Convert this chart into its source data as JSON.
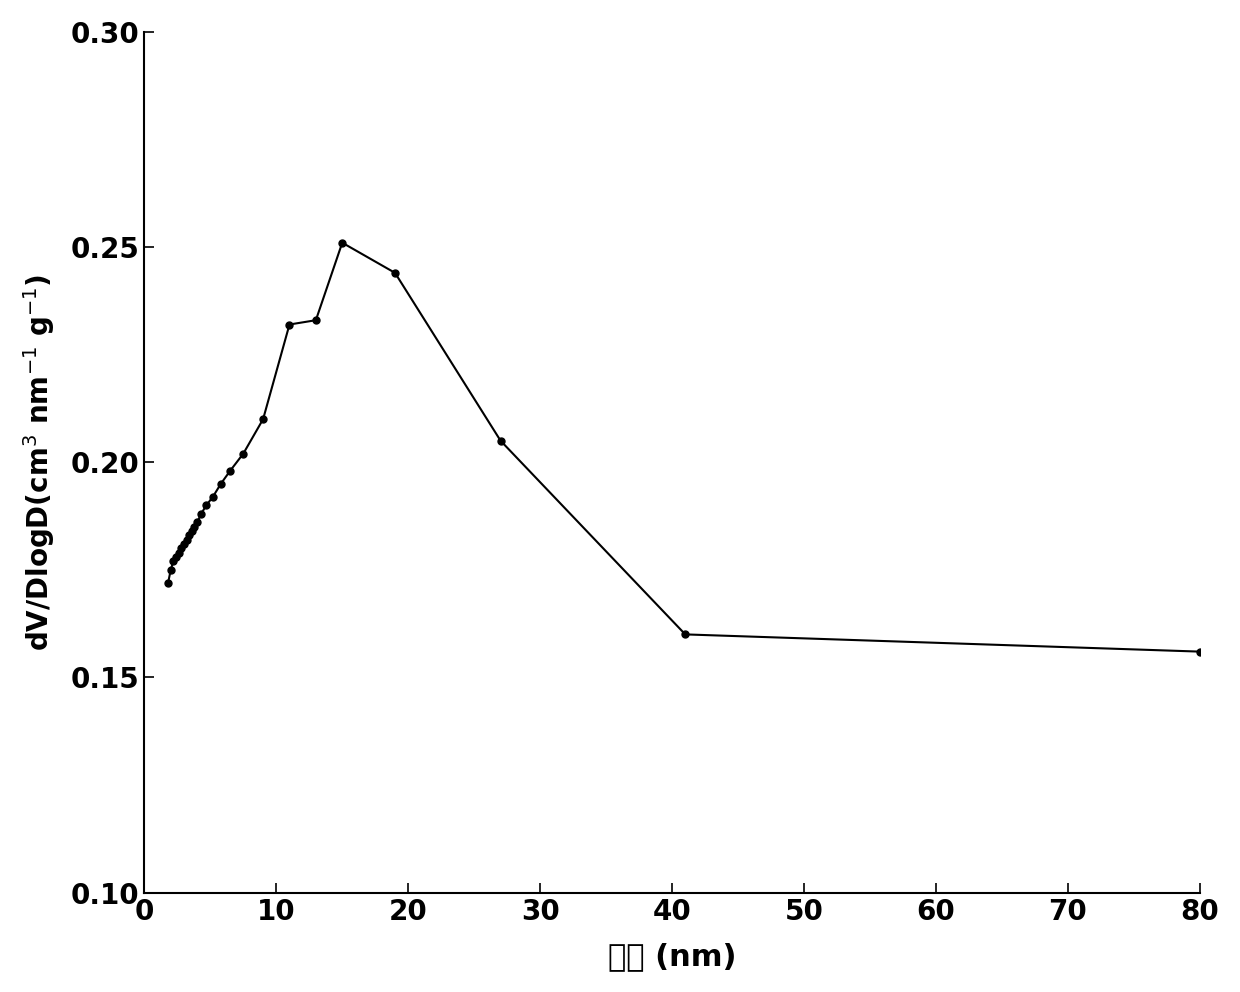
{
  "x": [
    1.8,
    2.0,
    2.2,
    2.4,
    2.6,
    2.8,
    3.0,
    3.2,
    3.4,
    3.6,
    3.8,
    4.0,
    4.3,
    4.7,
    5.2,
    5.8,
    6.5,
    7.5,
    9.0,
    11.0,
    13.0,
    15.0,
    19.0,
    27.0,
    41.0,
    80.0
  ],
  "y": [
    0.172,
    0.175,
    0.177,
    0.178,
    0.179,
    0.18,
    0.181,
    0.182,
    0.183,
    0.184,
    0.185,
    0.186,
    0.188,
    0.19,
    0.192,
    0.195,
    0.198,
    0.202,
    0.21,
    0.232,
    0.233,
    0.251,
    0.244,
    0.205,
    0.16,
    0.156
  ],
  "xlabel_chinese": "孔径",
  "xlabel_nm": " (nm)",
  "ylabel_line1": "dV/DlogD(cm",
  "ylabel_sup1": "3",
  "ylabel_mid": " nm",
  "ylabel_sup2": "-1",
  "ylabel_end": " g",
  "ylabel_sup3": "-1",
  "ylabel_end2": ")",
  "xlim": [
    0,
    80
  ],
  "ylim": [
    0.1,
    0.3
  ],
  "xticks": [
    0,
    10,
    20,
    30,
    40,
    50,
    60,
    70,
    80
  ],
  "yticks": [
    0.1,
    0.15,
    0.2,
    0.25,
    0.3
  ],
  "marker": "o",
  "markersize": 5,
  "linewidth": 1.5,
  "color": "#000000",
  "background_color": "#ffffff"
}
